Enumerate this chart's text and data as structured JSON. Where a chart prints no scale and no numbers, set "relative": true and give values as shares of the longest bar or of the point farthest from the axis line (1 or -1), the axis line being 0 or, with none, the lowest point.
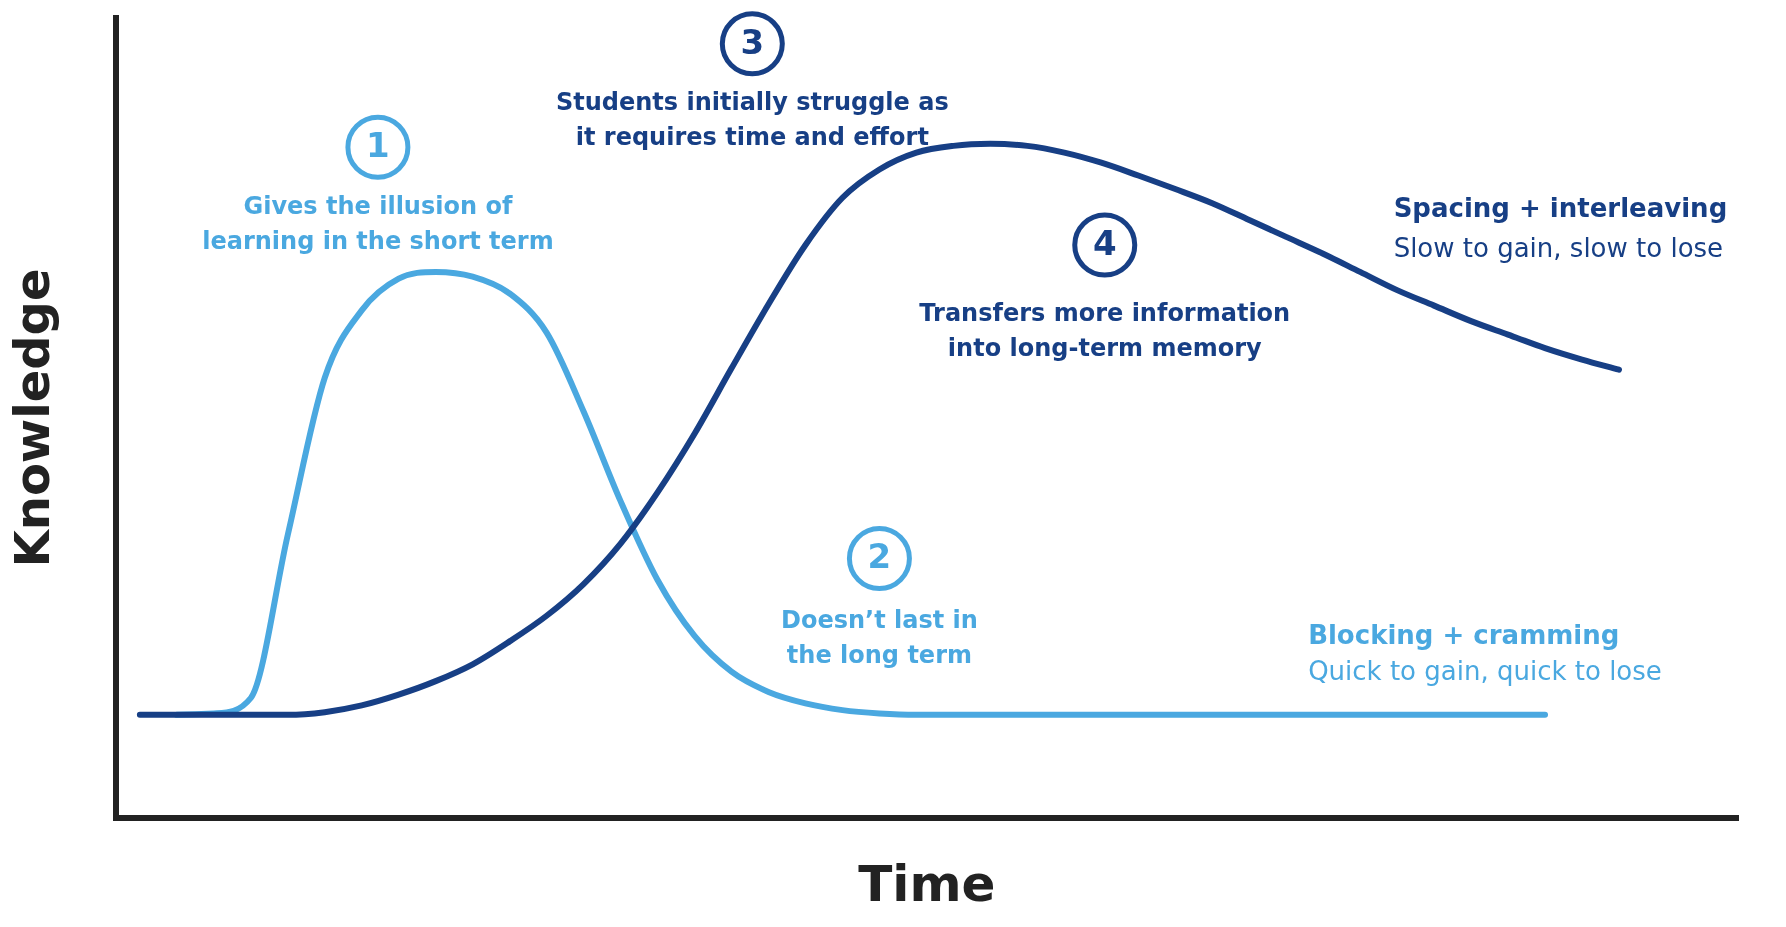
{
  "chart_data": {
    "type": "line",
    "relative": true,
    "xlabel": "Time",
    "ylabel": "Knowledge",
    "legend": false,
    "marker": "none",
    "line_style": "solid",
    "categories": [
      null,
      null,
      null,
      null,
      null,
      null,
      null,
      null,
      null,
      null,
      null,
      null,
      null,
      null,
      null,
      null,
      null,
      null,
      null,
      null,
      null,
      null,
      null,
      null,
      null,
      null,
      null,
      null,
      null,
      null,
      null,
      null,
      null,
      null,
      null,
      null,
      null,
      null,
      null,
      null,
      null
    ],
    "series": [
      {
        "name": "Spacing + interleaving",
        "color": "#173f85",
        "values": [
          0.153,
          0.153,
          0.153,
          0.153,
          0.153,
          0.157,
          0.167,
          0.183,
          0.203,
          0.228,
          0.262,
          0.3,
          0.347,
          0.407,
          0.483,
          0.57,
          0.667,
          0.762,
          0.85,
          0.92,
          0.962,
          0.987,
          0.997,
          1,
          0.997,
          0.987,
          0.972,
          0.953,
          0.933,
          0.912,
          0.887,
          0.862,
          0.837,
          0.81,
          0.783,
          0.76,
          0.737,
          0.717,
          0.697,
          0.68,
          0.665
        ]
      },
      {
        "name": "Blocking + cramming",
        "color": "#4aa8e0",
        "values": [
          null,
          0.153,
          0.155,
          0.178,
          0.42,
          0.653,
          0.753,
          0.8,
          0.81,
          0.803,
          0.778,
          0.72,
          0.603,
          0.47,
          0.353,
          0.27,
          0.217,
          0.187,
          0.17,
          0.16,
          0.155,
          0.153,
          0.153,
          0.153,
          0.153,
          0.153,
          0.153,
          0.153,
          0.153,
          0.153,
          0.153,
          0.153,
          0.153,
          0.153,
          0.153,
          0.153,
          0.153,
          0.153,
          0.153,
          null,
          null
        ]
      }
    ],
    "annotations": [
      "1",
      "Gives the illusion of\nlearning in the short term",
      "2",
      "Doesn’t last in\nthe long term",
      "3",
      "Students initially struggle as\nit requires time and effort",
      "4",
      "Transfers more information\ninto long-term memory",
      "Slow to gain, slow to lose",
      "Quick to gain, quick to lose"
    ]
  }
}
